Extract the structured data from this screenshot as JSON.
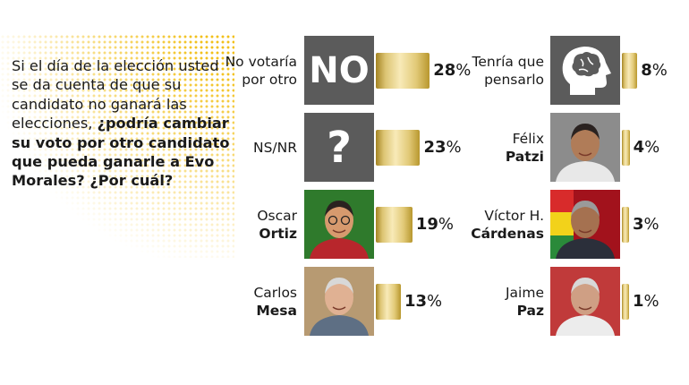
{
  "question": {
    "intro": "Si el día de la elección usted se da cuenta de que su candidato no ganará las elecciones,",
    "bold": "¿podría cambiar su voto por otro candidato que pueda ganarle a Evo Morales? ¿Por cuál?"
  },
  "colors": {
    "accent": "#f2c019",
    "bar_gold": "#dcc472",
    "tile_gray": "#5b5b5b"
  },
  "tiles": {
    "no_text": "NO",
    "nsnr_text": "?"
  },
  "chart_data": {
    "type": "bar",
    "categories": [
      "No votaría por otro",
      "NS/NR",
      "Oscar Ortiz",
      "Carlos Mesa",
      "Tenría que pensarlo",
      "Félix Patzi",
      "Víctor H. Cárdenas",
      "Jaime Paz"
    ],
    "values": [
      28,
      23,
      19,
      13,
      8,
      4,
      3,
      1
    ],
    "unit": "%"
  },
  "items": [
    {
      "first": "No votaría",
      "last": "por otro",
      "last_bold": false,
      "value": 28,
      "icon": "no-tile"
    },
    {
      "first": "NS/NR",
      "last": "",
      "last_bold": false,
      "value": 23,
      "icon": "question-mark-tile"
    },
    {
      "first": "Oscar",
      "last": "Ortiz",
      "last_bold": true,
      "value": 19,
      "icon": "candidate-photo"
    },
    {
      "first": "Carlos",
      "last": "Mesa",
      "last_bold": true,
      "value": 13,
      "icon": "candidate-photo"
    },
    {
      "first": "Tenría que",
      "last": "pensarlo",
      "last_bold": false,
      "value": 8,
      "icon": "head-brain-icon"
    },
    {
      "first": "Félix",
      "last": "Patzi",
      "last_bold": true,
      "value": 4,
      "icon": "candidate-photo"
    },
    {
      "first": "Víctor H.",
      "last": "Cárdenas",
      "last_bold": true,
      "value": 3,
      "icon": "candidate-photo"
    },
    {
      "first": "Jaime",
      "last": "Paz",
      "last_bold": true,
      "value": 1,
      "icon": "candidate-photo"
    }
  ]
}
